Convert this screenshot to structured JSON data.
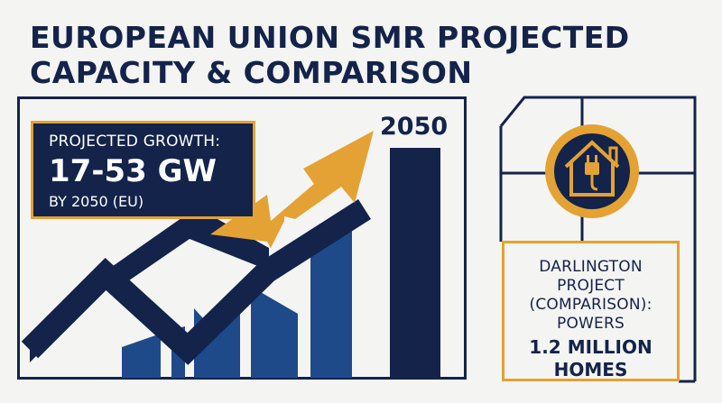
{
  "header": {
    "title_line1": "EUROPEAN UNION SMR PROJECTED",
    "title_line2": "CAPACITY & COMPARISON"
  },
  "growth_card": {
    "label": "PROJECTED GROWTH:",
    "value": "17-53 GW",
    "note": "BY 2050 (EU)"
  },
  "chart": {
    "year_label": "2050",
    "arrow_color": "#e3a233",
    "bar_color": "#1e4a8a",
    "dark_color": "#13234a"
  },
  "comparison_card": {
    "line1": "DARLINGTON",
    "line2": "PROJECT",
    "line3": "(COMPARISON):",
    "line4": "POWERS",
    "line5": "1.2 MILLION",
    "line6": "HOMES"
  },
  "icon": {
    "name": "house-plug-icon"
  },
  "colors": {
    "navy": "#13234a",
    "gold": "#e3a233",
    "blue": "#1e4a8a",
    "background": "#f4f4f2"
  }
}
